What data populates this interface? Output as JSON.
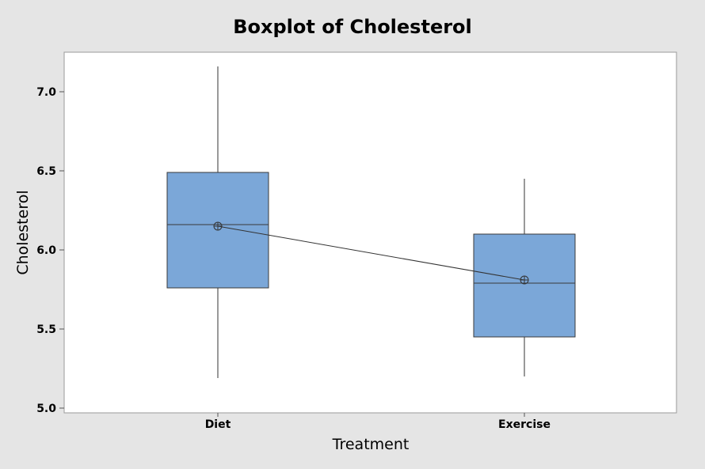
{
  "chart_data": {
    "type": "boxplot",
    "title": "Boxplot of Cholesterol",
    "xlabel": "Treatment",
    "ylabel": "Cholesterol",
    "categories": [
      "Diet",
      "Exercise"
    ],
    "ylim": [
      4.97,
      7.25
    ],
    "yticks": [
      5.0,
      5.5,
      6.0,
      6.5,
      7.0
    ],
    "ytick_labels": [
      "5.0",
      "5.5",
      "6.0",
      "6.5",
      "7.0"
    ],
    "boxes": [
      {
        "category": "Diet",
        "min": 5.19,
        "q1": 5.76,
        "median": 6.16,
        "q3": 6.49,
        "max": 7.16,
        "mean": 6.15
      },
      {
        "category": "Exercise",
        "min": 5.2,
        "q1": 5.45,
        "median": 5.79,
        "q3": 6.1,
        "max": 6.45,
        "mean": 5.81
      }
    ],
    "mean_connect_line": true,
    "grid": false,
    "colors": {
      "box_fill": "#7ba7d8",
      "box_stroke": "#3a3a3a",
      "plot_background": "#ffffff",
      "figure_background": "#e5e5e5"
    }
  }
}
